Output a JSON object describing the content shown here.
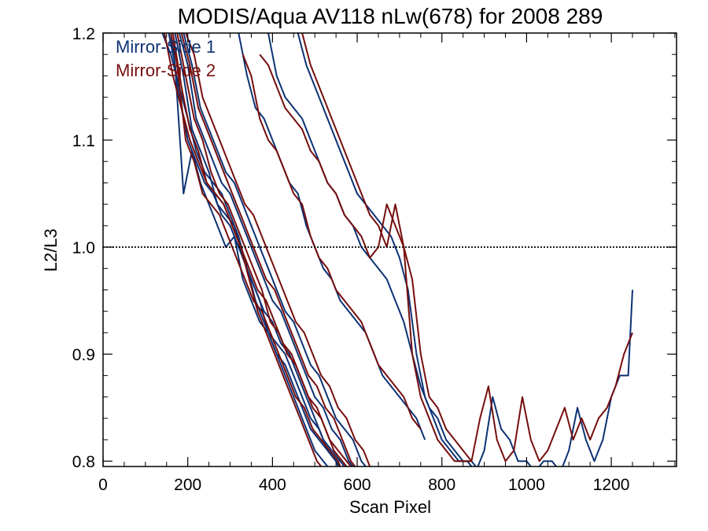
{
  "chart_data": {
    "type": "line",
    "title": "MODIS/Aqua AV118 nLw(678) for 2008 289",
    "xlabel": "Scan Pixel",
    "ylabel": "L2/L3",
    "xlim": [
      0,
      1354
    ],
    "ylim": [
      0.795,
      1.2
    ],
    "xticks": [
      0,
      200,
      400,
      600,
      800,
      1000,
      1200
    ],
    "xtick_labels": [
      "0",
      "200",
      "400",
      "600",
      "800",
      "1000",
      "1200"
    ],
    "yticks": [
      0.8,
      0.9,
      1.0,
      1.1,
      1.2
    ],
    "ytick_labels": [
      "0.8",
      "0.9",
      "1.0",
      "1.1",
      "1.2"
    ],
    "reference_line": 1.0,
    "legend_position": "top-left",
    "colors": {
      "mirror_side_1": "#0d3274",
      "mirror_side_2": "#760e0e"
    },
    "legend": [
      {
        "label": "Mirror-Side 1",
        "color": "#0d3274"
      },
      {
        "label": "Mirror-Side 2",
        "color": "#760e0e"
      }
    ],
    "series": [
      {
        "name": "Mirror-Side 1",
        "color": "#0d3274",
        "x": [
          140,
          160,
          180,
          200,
          220,
          240,
          260,
          280,
          300,
          320,
          340,
          360,
          380,
          400,
          420,
          440,
          460,
          480,
          500,
          520,
          540
        ],
        "y": [
          1.2,
          1.18,
          1.15,
          1.12,
          1.09,
          1.07,
          1.06,
          1.05,
          1.03,
          1.01,
          0.98,
          0.95,
          0.93,
          0.91,
          0.89,
          0.87,
          0.85,
          0.83,
          0.81,
          0.8,
          0.79
        ]
      },
      {
        "name": "Mirror-Side 1",
        "color": "#0d3274",
        "x": [
          150,
          170,
          190,
          210,
          230,
          250,
          270,
          290,
          310,
          330,
          350,
          370,
          390,
          410,
          430,
          450,
          470,
          490,
          510,
          530,
          550,
          570
        ],
        "y": [
          1.21,
          1.17,
          1.05,
          1.09,
          1.06,
          1.04,
          1.02,
          1.0,
          1.01,
          0.97,
          0.95,
          0.93,
          0.92,
          0.9,
          0.89,
          0.87,
          0.85,
          0.83,
          0.82,
          0.81,
          0.8,
          0.78
        ]
      },
      {
        "name": "Mirror-Side 1",
        "color": "#0d3274",
        "x": [
          160,
          180,
          200,
          220,
          240,
          260,
          280,
          300,
          320,
          340,
          360,
          380,
          400,
          420,
          440,
          460,
          480,
          500,
          520,
          540,
          560,
          580
        ],
        "y": [
          1.2,
          1.14,
          1.1,
          1.08,
          1.06,
          1.05,
          1.03,
          1.02,
          1.0,
          0.98,
          0.96,
          0.94,
          0.93,
          0.91,
          0.9,
          0.88,
          0.86,
          0.84,
          0.82,
          0.81,
          0.8,
          0.79
        ]
      },
      {
        "name": "Mirror-Side 1",
        "color": "#0d3274",
        "x": [
          170,
          190,
          210,
          230,
          250,
          270,
          290,
          310,
          330,
          350,
          370,
          390,
          410,
          430,
          450,
          470,
          490,
          510,
          530,
          550,
          570,
          590
        ],
        "y": [
          1.2,
          1.16,
          1.11,
          1.09,
          1.07,
          1.04,
          1.03,
          1.02,
          0.99,
          0.97,
          0.95,
          0.92,
          0.91,
          0.9,
          0.88,
          0.86,
          0.84,
          0.83,
          0.81,
          0.8,
          0.79,
          0.78
        ]
      },
      {
        "name": "Mirror-Side 1",
        "color": "#0d3274",
        "x": [
          180,
          200,
          220,
          240,
          260,
          280,
          300,
          320,
          340,
          360,
          380,
          400,
          420,
          440,
          460,
          480,
          500,
          520,
          540,
          560,
          580,
          600
        ],
        "y": [
          1.2,
          1.17,
          1.12,
          1.1,
          1.08,
          1.06,
          1.05,
          1.03,
          1.01,
          0.99,
          0.97,
          0.95,
          0.94,
          0.92,
          0.9,
          0.88,
          0.86,
          0.85,
          0.83,
          0.82,
          0.8,
          0.79
        ]
      },
      {
        "name": "Mirror-Side 1",
        "color": "#0d3274",
        "x": [
          190,
          210,
          230,
          250,
          270,
          290,
          310,
          330,
          350,
          370,
          390,
          410,
          430,
          450,
          470,
          490,
          510,
          530,
          550,
          570,
          590,
          610,
          630
        ],
        "y": [
          1.2,
          1.17,
          1.13,
          1.11,
          1.09,
          1.07,
          1.06,
          1.04,
          1.02,
          1.0,
          0.98,
          0.96,
          0.94,
          0.93,
          0.91,
          0.89,
          0.88,
          0.86,
          0.84,
          0.83,
          0.82,
          0.8,
          0.79
        ]
      },
      {
        "name": "Mirror-Side 1",
        "color": "#0d3274",
        "x": [
          320,
          340,
          360,
          380,
          400,
          420,
          440,
          460,
          480,
          500,
          520,
          540,
          560,
          580,
          600,
          620,
          640,
          660,
          680,
          700,
          720,
          740,
          760
        ],
        "y": [
          1.2,
          1.16,
          1.13,
          1.12,
          1.1,
          1.08,
          1.06,
          1.05,
          1.02,
          1.0,
          0.98,
          0.97,
          0.95,
          0.94,
          0.93,
          0.92,
          0.9,
          0.88,
          0.87,
          0.86,
          0.85,
          0.84,
          0.82
        ]
      },
      {
        "name": "Mirror-Side 1",
        "color": "#0d3274",
        "x": [
          390,
          410,
          430,
          450,
          470,
          490,
          510,
          530,
          550,
          570,
          590,
          610,
          630,
          650,
          670,
          690,
          710,
          730,
          750,
          770,
          790,
          810,
          830,
          850,
          870,
          890
        ],
        "y": [
          1.2,
          1.16,
          1.14,
          1.13,
          1.12,
          1.1,
          1.08,
          1.06,
          1.05,
          1.03,
          1.02,
          1.0,
          0.99,
          0.98,
          0.97,
          0.95,
          0.93,
          0.9,
          0.87,
          0.85,
          0.84,
          0.82,
          0.81,
          0.8,
          0.8,
          0.79
        ]
      },
      {
        "name": "Mirror-Side 1",
        "color": "#0d3274",
        "x": [
          460,
          480,
          500,
          520,
          540,
          560,
          580,
          600,
          620,
          640,
          660,
          680,
          700,
          720,
          740,
          760,
          780,
          800,
          820,
          840,
          860,
          880,
          900,
          920,
          940,
          960,
          980,
          1000,
          1020,
          1040,
          1060,
          1080,
          1100,
          1120,
          1140,
          1160,
          1180,
          1200,
          1220,
          1240,
          1250
        ],
        "y": [
          1.2,
          1.17,
          1.15,
          1.13,
          1.11,
          1.09,
          1.07,
          1.05,
          1.04,
          1.03,
          1.02,
          1.01,
          0.99,
          0.96,
          0.9,
          0.86,
          0.84,
          0.82,
          0.81,
          0.8,
          0.8,
          0.79,
          0.81,
          0.86,
          0.83,
          0.82,
          0.8,
          0.8,
          0.79,
          0.8,
          0.8,
          0.79,
          0.81,
          0.85,
          0.82,
          0.8,
          0.82,
          0.86,
          0.88,
          0.88,
          0.96
        ]
      },
      {
        "name": "Mirror-Side 2",
        "color": "#760e0e",
        "x": [
          145,
          165,
          185,
          205,
          225,
          245,
          265,
          285,
          305,
          325,
          345,
          365,
          385,
          405,
          425,
          445,
          465,
          485,
          505,
          525,
          545
        ],
        "y": [
          1.2,
          1.16,
          1.13,
          1.1,
          1.08,
          1.06,
          1.05,
          1.04,
          1.02,
          1.0,
          0.97,
          0.94,
          0.92,
          0.9,
          0.88,
          0.86,
          0.84,
          0.82,
          0.8,
          0.79,
          0.78
        ]
      },
      {
        "name": "Mirror-Side 2",
        "color": "#760e0e",
        "x": [
          155,
          175,
          195,
          215,
          235,
          255,
          275,
          295,
          315,
          335,
          355,
          375,
          395,
          415,
          435,
          455,
          475,
          495,
          515,
          535,
          555,
          575
        ],
        "y": [
          1.21,
          1.17,
          1.1,
          1.08,
          1.05,
          1.04,
          1.03,
          1.01,
          0.99,
          0.97,
          0.95,
          0.94,
          0.92,
          0.9,
          0.88,
          0.86,
          0.85,
          0.83,
          0.82,
          0.81,
          0.8,
          0.78
        ]
      },
      {
        "name": "Mirror-Side 2",
        "color": "#760e0e",
        "x": [
          165,
          185,
          205,
          225,
          245,
          265,
          285,
          305,
          325,
          345,
          365,
          385,
          405,
          425,
          445,
          465,
          485,
          505,
          525,
          545,
          565,
          585
        ],
        "y": [
          1.2,
          1.15,
          1.11,
          1.09,
          1.06,
          1.05,
          1.04,
          1.02,
          1.0,
          0.98,
          0.96,
          0.95,
          0.93,
          0.91,
          0.9,
          0.88,
          0.86,
          0.85,
          0.83,
          0.81,
          0.8,
          0.79
        ]
      },
      {
        "name": "Mirror-Side 2",
        "color": "#760e0e",
        "x": [
          175,
          195,
          215,
          235,
          255,
          275,
          295,
          315,
          335,
          355,
          375,
          395,
          415,
          435,
          455,
          475,
          495,
          515,
          535,
          555,
          575,
          595
        ],
        "y": [
          1.2,
          1.16,
          1.12,
          1.1,
          1.07,
          1.05,
          1.04,
          1.02,
          1.0,
          0.98,
          0.96,
          0.93,
          0.92,
          0.9,
          0.89,
          0.87,
          0.85,
          0.84,
          0.82,
          0.81,
          0.8,
          0.79
        ]
      },
      {
        "name": "Mirror-Side 2",
        "color": "#760e0e",
        "x": [
          185,
          205,
          225,
          245,
          265,
          285,
          305,
          325,
          345,
          365,
          385,
          405,
          425,
          445,
          465,
          485,
          505,
          525,
          545,
          565,
          585,
          605
        ],
        "y": [
          1.2,
          1.17,
          1.13,
          1.11,
          1.09,
          1.07,
          1.05,
          1.03,
          1.01,
          0.99,
          0.97,
          0.96,
          0.94,
          0.92,
          0.9,
          0.88,
          0.87,
          0.85,
          0.84,
          0.82,
          0.8,
          0.79
        ]
      },
      {
        "name": "Mirror-Side 2",
        "color": "#760e0e",
        "x": [
          195,
          215,
          235,
          255,
          275,
          295,
          315,
          335,
          355,
          375,
          395,
          415,
          435,
          455,
          475,
          495,
          515,
          535,
          555,
          575,
          595,
          615,
          635
        ],
        "y": [
          1.2,
          1.18,
          1.14,
          1.12,
          1.1,
          1.08,
          1.06,
          1.04,
          1.03,
          1.01,
          0.99,
          0.97,
          0.95,
          0.93,
          0.92,
          0.9,
          0.88,
          0.87,
          0.85,
          0.84,
          0.82,
          0.81,
          0.79
        ]
      },
      {
        "name": "Mirror-Side 2",
        "color": "#760e0e",
        "x": [
          330,
          350,
          370,
          390,
          410,
          430,
          450,
          470,
          490,
          510,
          530,
          550,
          570,
          590,
          610,
          630,
          650,
          670,
          690,
          710,
          730,
          750
        ],
        "y": [
          1.18,
          1.16,
          1.12,
          1.1,
          1.09,
          1.07,
          1.05,
          1.04,
          1.01,
          0.99,
          0.98,
          0.96,
          0.95,
          0.94,
          0.93,
          0.91,
          0.89,
          0.88,
          0.87,
          0.86,
          0.84,
          0.83
        ]
      },
      {
        "name": "Mirror-Side 2",
        "color": "#760e0e",
        "x": [
          370,
          390,
          410,
          430,
          450,
          470,
          490,
          510,
          530,
          550,
          570,
          590,
          610,
          630,
          650,
          670,
          690,
          710,
          730,
          750,
          770,
          790,
          810,
          830,
          850,
          870
        ],
        "y": [
          1.18,
          1.17,
          1.15,
          1.13,
          1.12,
          1.11,
          1.09,
          1.08,
          1.06,
          1.05,
          1.03,
          1.02,
          1.01,
          0.99,
          1.0,
          1.04,
          1.02,
          1.0,
          0.9,
          0.86,
          0.84,
          0.82,
          0.81,
          0.8,
          0.8,
          0.8
        ]
      },
      {
        "name": "Mirror-Side 2",
        "color": "#760e0e",
        "x": [
          470,
          490,
          510,
          530,
          550,
          570,
          590,
          610,
          630,
          650,
          670,
          690,
          710,
          730,
          750,
          770,
          790,
          810,
          830,
          850,
          870,
          890,
          910,
          930,
          950,
          970,
          990,
          1010,
          1030,
          1050,
          1070,
          1090,
          1110,
          1130,
          1150,
          1170,
          1190,
          1210,
          1230,
          1250
        ],
        "y": [
          1.2,
          1.17,
          1.15,
          1.13,
          1.11,
          1.09,
          1.07,
          1.05,
          1.03,
          1.02,
          1.0,
          1.04,
          1.0,
          0.97,
          0.9,
          0.86,
          0.85,
          0.83,
          0.82,
          0.81,
          0.8,
          0.84,
          0.87,
          0.82,
          0.8,
          0.81,
          0.86,
          0.82,
          0.8,
          0.81,
          0.83,
          0.85,
          0.82,
          0.84,
          0.82,
          0.84,
          0.85,
          0.87,
          0.9,
          0.92
        ]
      }
    ]
  }
}
